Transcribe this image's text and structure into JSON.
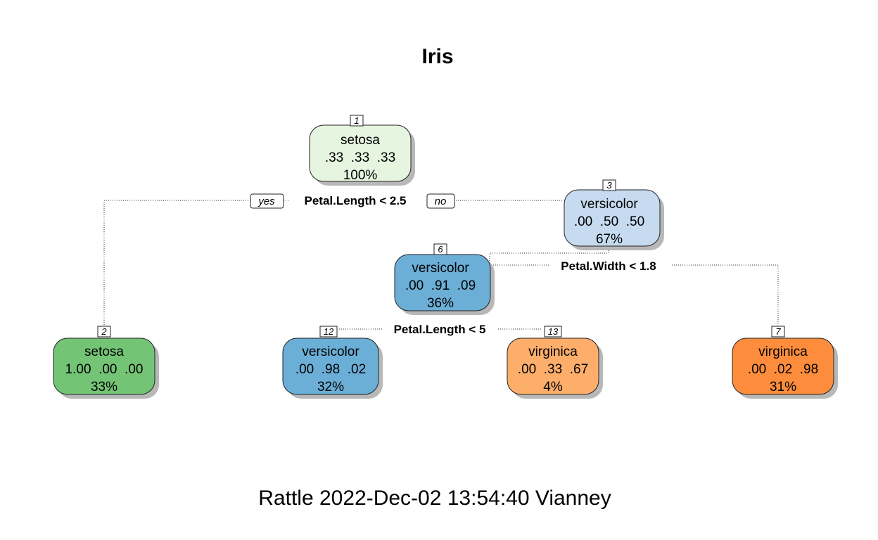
{
  "title": "Iris",
  "footer": "Rattle 2022-Dec-02 13:54:40 Vianney",
  "branch_labels": {
    "yes": "yes",
    "no": "no"
  },
  "nodes": [
    {
      "id": "1",
      "class": "setosa",
      "probs": ".33  .33  .33",
      "pct": "100%",
      "color": "#e5f5e0"
    },
    {
      "id": "3",
      "class": "versicolor",
      "probs": ".00  .50  .50",
      "pct": "67%",
      "color": "#c6dbef"
    },
    {
      "id": "6",
      "class": "versicolor",
      "probs": ".00  .91  .09",
      "pct": "36%",
      "color": "#6baed6"
    },
    {
      "id": "2",
      "class": "setosa",
      "probs": "1.00  .00  .00",
      "pct": "33%",
      "color": "#74c476"
    },
    {
      "id": "12",
      "class": "versicolor",
      "probs": ".00  .98  .02",
      "pct": "32%",
      "color": "#6baed6"
    },
    {
      "id": "13",
      "class": "virginica",
      "probs": ".00  .33  .67",
      "pct": "4%",
      "color": "#fdae6b"
    },
    {
      "id": "7",
      "class": "virginica",
      "probs": ".00  .02  .98",
      "pct": "31%",
      "color": "#fd8d3c"
    }
  ],
  "splits": [
    {
      "node": "1",
      "rule": "Petal.Length < 2.5"
    },
    {
      "node": "3",
      "rule": "Petal.Width < 1.8"
    },
    {
      "node": "6",
      "rule": "Petal.Length < 5"
    }
  ]
}
